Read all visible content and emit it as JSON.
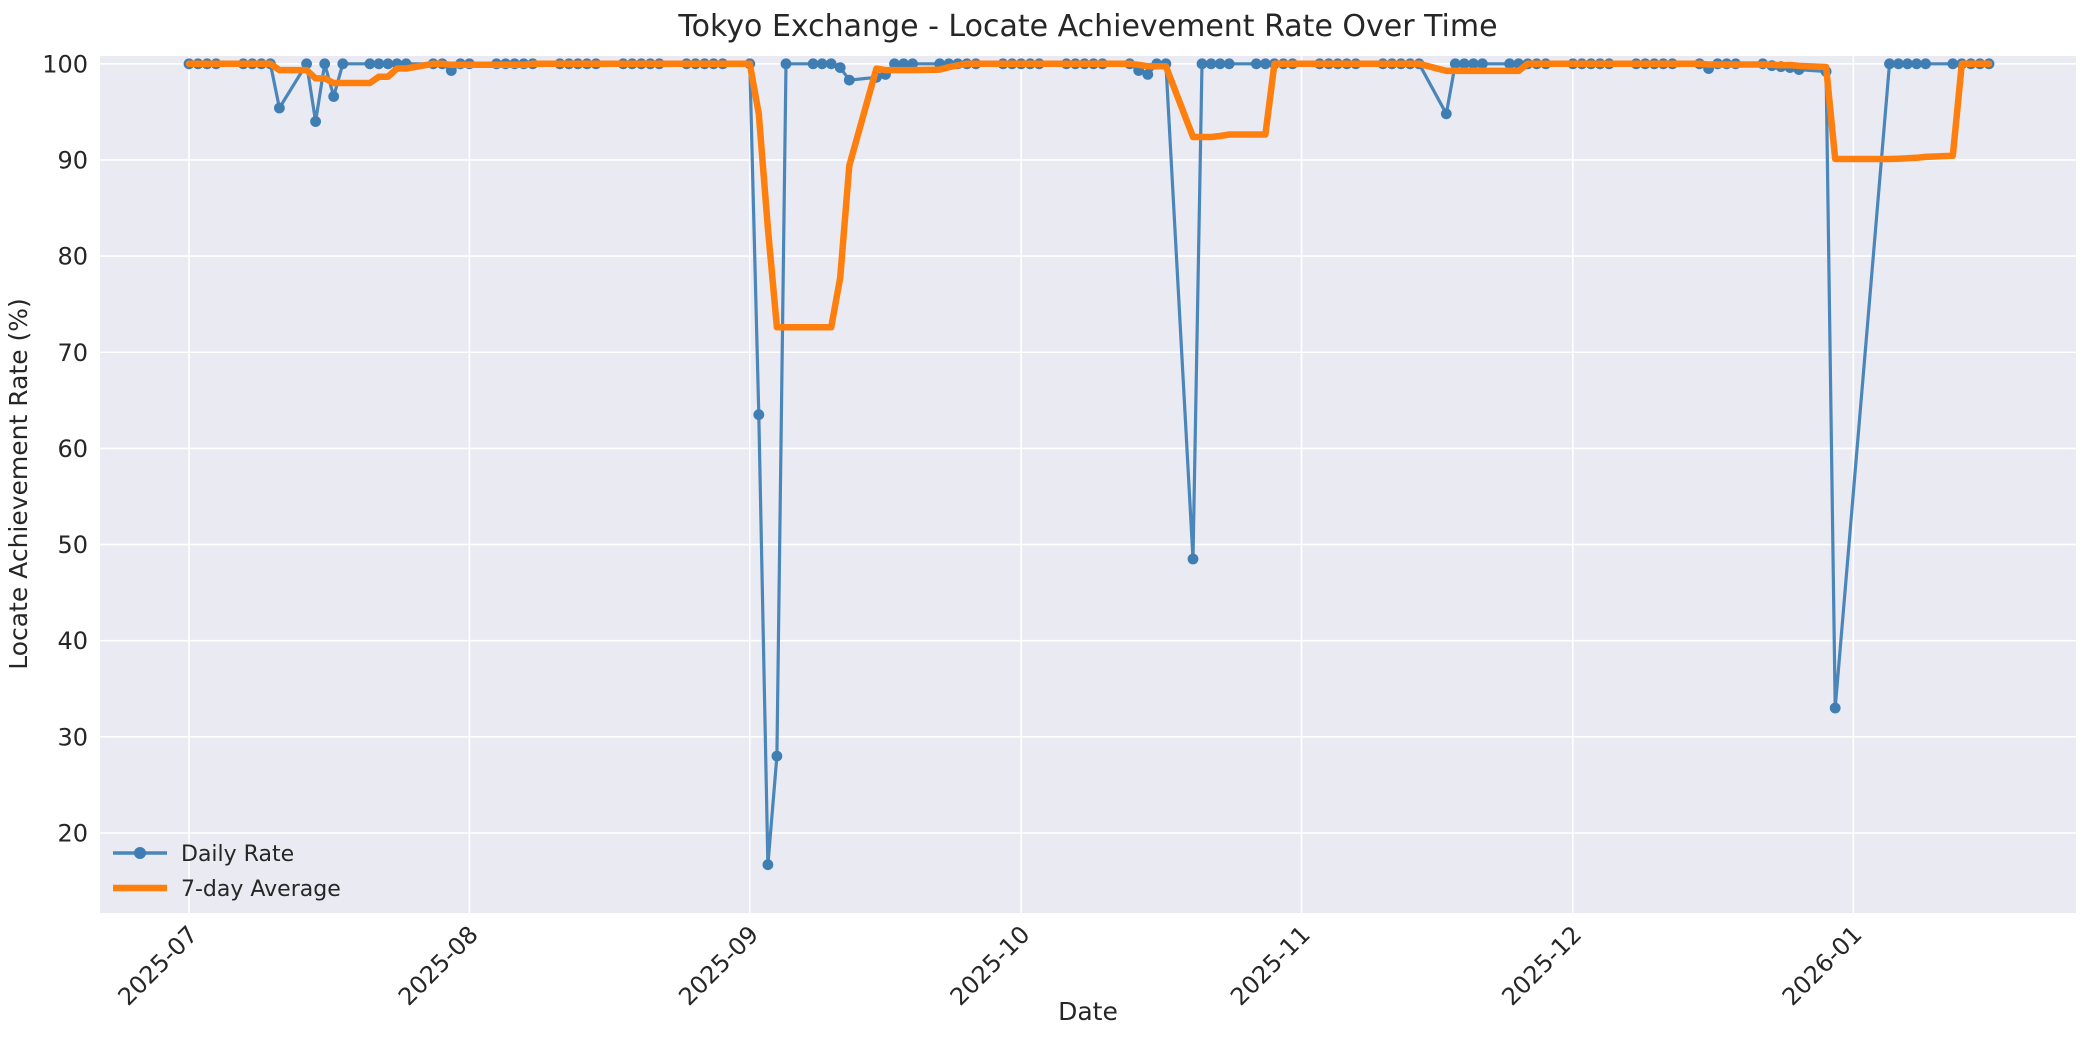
{
  "chart_data": {
    "type": "line",
    "title": "Tokyo Exchange - Locate Achievement Rate Over Time",
    "xlabel": "Date",
    "ylabel": "Locate Achievement Rate (%)",
    "grid": true,
    "plot_background": "#eaeaf2",
    "grid_color": "#ffffff",
    "legend_position": "lower left",
    "x_ticks": [
      {
        "label": "2025-07",
        "date": "2025-07-01"
      },
      {
        "label": "2025-08",
        "date": "2025-08-01"
      },
      {
        "label": "2025-09",
        "date": "2025-09-01"
      },
      {
        "label": "2025-10",
        "date": "2025-10-01"
      },
      {
        "label": "2025-11",
        "date": "2025-11-01"
      },
      {
        "label": "2025-12",
        "date": "2025-12-01"
      },
      {
        "label": "2026-01",
        "date": "2026-01-01"
      }
    ],
    "y_ticks": [
      20,
      30,
      40,
      50,
      60,
      70,
      80,
      90,
      100
    ],
    "ylim": [
      11.7,
      100.8
    ],
    "series": [
      {
        "name": "Daily Rate",
        "style": "line+markers",
        "color": "#4a86b9",
        "marker_color": "#3f7eb3",
        "schedule": "weekdays",
        "start": "2025-07-01",
        "end": "2026-01-16",
        "holidays_excluded": [
          "2025-12-31",
          "2026-01-01",
          "2026-01-02"
        ],
        "default_value": 100,
        "exceptions": {
          "2025-07-11": 95.4,
          "2025-07-15": 94.0,
          "2025-07-17": 96.6,
          "2025-07-30": 99.3,
          "2025-09-02": 63.5,
          "2025-09-03": 16.7,
          "2025-09-04": 28.0,
          "2025-09-11": 99.6,
          "2025-09-12": 98.3,
          "2025-09-15": 98.6,
          "2025-09-16": 98.9,
          "2025-10-14": 99.3,
          "2025-10-15": 98.9,
          "2025-10-20": 48.5,
          "2025-11-17": 94.8,
          "2025-12-16": 99.5,
          "2025-12-23": 99.8,
          "2025-12-24": 99.7,
          "2025-12-25": 99.6,
          "2025-12-26": 99.4,
          "2025-12-29": 99.2,
          "2025-12-30": 33.0
        }
      },
      {
        "name": "7-day Average",
        "style": "line",
        "color": "#ff7f0e",
        "derivation": "rolling mean of last 7 observations of Daily Rate, min_periods=1",
        "window": 7,
        "key_levels": {
          "july_plateau": 98.0,
          "september_plateau": 72.6,
          "october_plateau": 92.5,
          "november_dip": 99.3,
          "december_january_plateau": 90.4
        }
      }
    ]
  }
}
